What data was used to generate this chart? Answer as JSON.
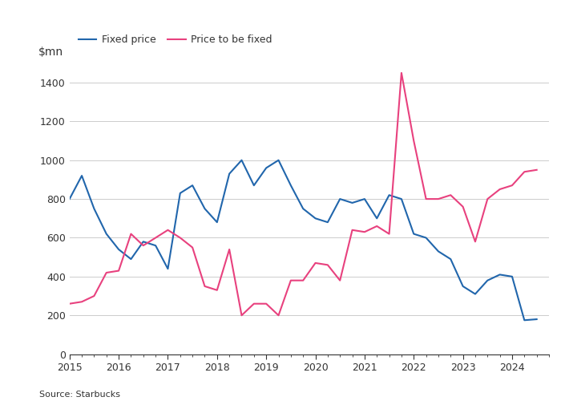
{
  "title": "",
  "ylabel": "$mn",
  "source": "Source: Starbucks",
  "legend": [
    "Fixed price",
    "Price to be fixed"
  ],
  "colors": [
    "#2166ac",
    "#e8417e"
  ],
  "background_color": "#ffffff",
  "text_color": "#333333",
  "grid_color": "#cccccc",
  "ylim": [
    0,
    1500
  ],
  "yticks": [
    0,
    200,
    400,
    600,
    800,
    1000,
    1200,
    1400
  ],
  "x_labels": [
    "2015",
    "2016",
    "2017",
    "2018",
    "2019",
    "2020",
    "2021",
    "2022",
    "2023",
    "2024"
  ],
  "fixed_price_x": [
    2015.0,
    2015.25,
    2015.5,
    2015.75,
    2016.0,
    2016.25,
    2016.5,
    2016.75,
    2017.0,
    2017.25,
    2017.5,
    2017.75,
    2018.0,
    2018.25,
    2018.5,
    2018.75,
    2019.0,
    2019.25,
    2019.5,
    2019.75,
    2020.0,
    2020.25,
    2020.5,
    2020.75,
    2021.0,
    2021.25,
    2021.5,
    2021.75,
    2022.0,
    2022.25,
    2022.5,
    2022.75,
    2023.0,
    2023.25,
    2023.5,
    2023.75,
    2024.0,
    2024.25,
    2024.5
  ],
  "fixed_price_y": [
    800,
    920,
    750,
    620,
    540,
    490,
    580,
    560,
    440,
    830,
    870,
    750,
    680,
    930,
    1000,
    870,
    960,
    1000,
    870,
    750,
    700,
    680,
    800,
    780,
    800,
    700,
    820,
    800,
    620,
    600,
    530,
    490,
    350,
    310,
    380,
    410,
    400,
    175,
    180
  ],
  "price_fixed_x": [
    2015.0,
    2015.25,
    2015.5,
    2015.75,
    2016.0,
    2016.25,
    2016.5,
    2016.75,
    2017.0,
    2017.25,
    2017.5,
    2017.75,
    2018.0,
    2018.25,
    2018.5,
    2018.75,
    2019.0,
    2019.25,
    2019.5,
    2019.75,
    2020.0,
    2020.25,
    2020.5,
    2020.75,
    2021.0,
    2021.25,
    2021.5,
    2021.75,
    2022.0,
    2022.25,
    2022.5,
    2022.75,
    2023.0,
    2023.25,
    2023.5,
    2023.75,
    2024.0,
    2024.25,
    2024.5
  ],
  "price_fixed_y": [
    260,
    270,
    300,
    420,
    430,
    620,
    560,
    600,
    640,
    600,
    550,
    350,
    330,
    540,
    200,
    260,
    260,
    200,
    380,
    380,
    470,
    460,
    380,
    640,
    630,
    660,
    620,
    1450,
    1100,
    800,
    800,
    820,
    760,
    580,
    800,
    850,
    870,
    940,
    950
  ]
}
